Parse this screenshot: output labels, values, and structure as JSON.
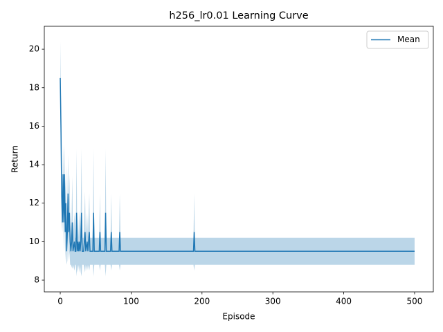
{
  "chart_data": {
    "type": "line",
    "title": "h256_lr0.01 Learning Curve",
    "xlabel": "Episode",
    "ylabel": "Return",
    "x": [
      0,
      1,
      2,
      3,
      4,
      5,
      6,
      7,
      8,
      9,
      10,
      11,
      12,
      13,
      14,
      15,
      16,
      17,
      18,
      20,
      21,
      22,
      23,
      24,
      25,
      26,
      27,
      28,
      29,
      30,
      31,
      33,
      35,
      36,
      38,
      39,
      41,
      42,
      46,
      47,
      48,
      55,
      56,
      57,
      63,
      64,
      65,
      71,
      72,
      73,
      83,
      84,
      85,
      188,
      189,
      190,
      500
    ],
    "series": [
      {
        "name": "Mean",
        "color": "#1f77b4",
        "values": [
          18.5,
          16,
          12.5,
          11,
          13.5,
          11,
          13.5,
          10.5,
          12,
          9.5,
          10.5,
          12.5,
          10.5,
          11.5,
          10,
          9.5,
          10,
          11,
          9.5,
          10,
          9.5,
          9.5,
          11.5,
          9.5,
          10,
          9.5,
          10,
          9.5,
          10,
          11.5,
          9.5,
          9.5,
          10.5,
          9.5,
          10,
          9.5,
          10.5,
          9.5,
          9.5,
          11.5,
          9.5,
          9.5,
          10.5,
          9.5,
          9.5,
          11.5,
          9.5,
          9.5,
          10.5,
          9.5,
          9.5,
          10.5,
          9.5,
          9.5,
          10.5,
          9.5,
          9.5
        ]
      }
    ],
    "band": {
      "color": "#1f77b4",
      "lower": [
        16.6,
        14.5,
        11,
        10.5,
        12,
        9.5,
        12,
        9,
        10,
        8.8,
        9,
        10.5,
        9,
        9.5,
        8.8,
        8.8,
        8.7,
        8.6,
        8.8,
        8.5,
        8.8,
        8.8,
        8.2,
        8.8,
        8.4,
        8.8,
        8.4,
        8.8,
        8.4,
        8.2,
        8.8,
        8.8,
        8.4,
        8.8,
        8.5,
        8.8,
        8.5,
        8.8,
        8.8,
        8.2,
        8.8,
        8.8,
        8.5,
        8.8,
        8.8,
        8.2,
        8.8,
        8.8,
        8.5,
        8.8,
        8.8,
        8.5,
        8.8,
        8.8,
        8.5,
        8.8,
        8.8
      ],
      "upper": [
        20.4,
        17.5,
        14,
        11.5,
        15,
        12.5,
        15,
        12,
        14,
        10.2,
        12,
        14.5,
        12,
        13.5,
        11.2,
        10.2,
        11.3,
        13.4,
        10.2,
        11.5,
        10.2,
        10.2,
        14.8,
        10.2,
        11.6,
        10.2,
        11.6,
        10.2,
        11.6,
        14.8,
        10.2,
        10.2,
        12.6,
        10.2,
        11.5,
        10.2,
        12.5,
        10.2,
        10.2,
        14.8,
        10.2,
        10.2,
        12.5,
        10.2,
        10.2,
        14.8,
        10.2,
        10.2,
        12.5,
        10.2,
        10.2,
        12.5,
        10.2,
        10.2,
        12.5,
        10.2,
        10.2
      ]
    },
    "xlim": [
      -22.5,
      526.4
    ],
    "ylim": [
      7.39,
      21.19
    ],
    "xticks": [
      0,
      100,
      200,
      300,
      400,
      500
    ],
    "yticks": [
      8,
      10,
      12,
      14,
      16,
      18,
      20
    ],
    "legend": "upper right"
  }
}
